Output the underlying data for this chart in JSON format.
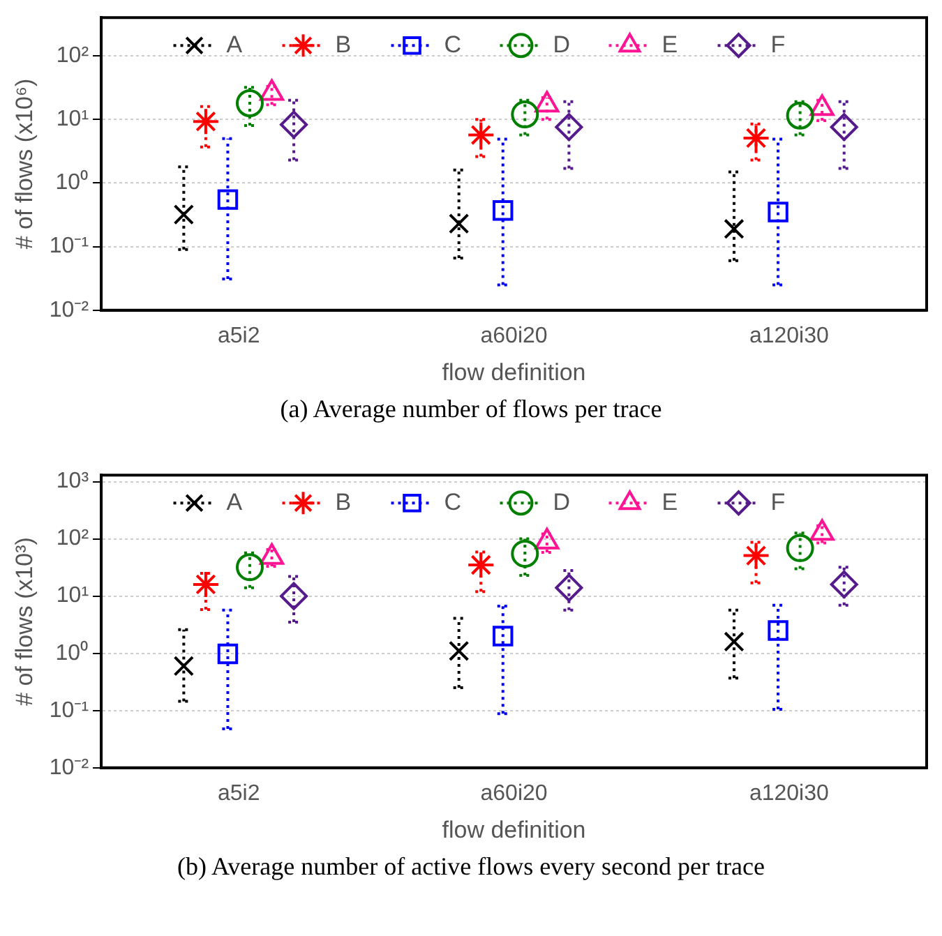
{
  "chart_data": [
    {
      "type": "scatter",
      "title": "(a) Average number of flows per trace",
      "xlabel": "flow definition",
      "ylabel": "# of flows (x10⁶)",
      "categories": [
        "a5i2",
        "a60i20",
        "a120i30"
      ],
      "log": "y",
      "grid": "y",
      "legend": "top",
      "ylim": [
        0.01,
        400
      ],
      "yticks": [
        {
          "value": 0.01,
          "label": "10⁻²"
        },
        {
          "value": 0.1,
          "label": "10⁻¹"
        },
        {
          "value": 1,
          "label": "10⁰"
        },
        {
          "value": 10,
          "label": "10¹"
        },
        {
          "value": 100,
          "label": "10²"
        }
      ],
      "line_style": "dotted",
      "series": [
        {
          "name": "A",
          "color": "#000000",
          "marker": "cross",
          "values": [
            0.32,
            0.23,
            0.19
          ],
          "errors": [
            [
              0.09,
              1.8
            ],
            [
              0.066,
              1.6
            ],
            [
              0.06,
              1.5
            ]
          ]
        },
        {
          "name": "B",
          "color": "#ff0000",
          "values": [
            9.3,
            5.7,
            5.1
          ],
          "errors": [
            [
              3.7,
              16
            ],
            [
              2.6,
              10
            ],
            [
              2.3,
              8.5
            ]
          ]
        },
        {
          "name": "C",
          "color": "#0000ff",
          "marker": "square",
          "values": [
            0.55,
            0.37,
            0.35
          ],
          "errors": [
            [
              0.031,
              5
            ],
            [
              0.025,
              4.9
            ],
            [
              0.025,
              4.9
            ]
          ]
        },
        {
          "name": "D",
          "color": "#007f00",
          "marker": "circle",
          "values": [
            18,
            12,
            11.5
          ],
          "errors": [
            [
              8,
              32
            ],
            [
              5.7,
              20
            ],
            [
              5.7,
              19
            ]
          ]
        },
        {
          "name": "E",
          "color": "#ff1493",
          "marker": "triangle",
          "values": [
            26,
            17,
            15
          ],
          "errors": [
            [
              17,
              33
            ],
            [
              10,
              22
            ],
            [
              9.6,
              20
            ]
          ]
        },
        {
          "name": "F",
          "color": "#551a8b",
          "marker": "diamond",
          "values": [
            8.3,
            7.6,
            7.6
          ],
          "errors": [
            [
              2.3,
              20
            ],
            [
              1.7,
              19
            ],
            [
              1.7,
              19
            ]
          ]
        }
      ]
    },
    {
      "type": "scatter",
      "title": "(b) Average number of active flows every second per trace",
      "xlabel": "flow definition",
      "ylabel": "# of flows (x10³)",
      "categories": [
        "a5i2",
        "a60i20",
        "a120i30"
      ],
      "log": "y",
      "grid": "y",
      "legend": "top",
      "ylim": [
        0.01,
        1300
      ],
      "yticks": [
        {
          "value": 0.01,
          "label": "10⁻²"
        },
        {
          "value": 0.1,
          "label": "10⁻¹"
        },
        {
          "value": 1,
          "label": "10⁰"
        },
        {
          "value": 10,
          "label": "10¹"
        },
        {
          "value": 100,
          "label": "10²"
        },
        {
          "value": 1000,
          "label": "10³"
        }
      ],
      "line_style": "dotted",
      "series": [
        {
          "name": "A",
          "color": "#000000",
          "marker": "cross",
          "values": [
            0.6,
            1.1,
            1.6
          ],
          "errors": [
            [
              0.145,
              2.6
            ],
            [
              0.25,
              4.1
            ],
            [
              0.37,
              5.7
            ]
          ]
        },
        {
          "name": "B",
          "color": "#ff0000",
          "values": [
            16,
            35,
            51
          ],
          "errors": [
            [
              5.8,
              25
            ],
            [
              12,
              59
            ],
            [
              17,
              87
            ]
          ]
        },
        {
          "name": "C",
          "color": "#0000ff",
          "marker": "square",
          "values": [
            0.98,
            2.0,
            2.5
          ],
          "errors": [
            [
              0.048,
              5.7
            ],
            [
              0.088,
              6.7
            ],
            [
              0.105,
              6.9
            ]
          ]
        },
        {
          "name": "D",
          "color": "#007f00",
          "marker": "circle",
          "values": [
            32,
            55,
            69
          ],
          "errors": [
            [
              14,
              57
            ],
            [
              23,
              100
            ],
            [
              30,
              126
            ]
          ]
        },
        {
          "name": "E",
          "color": "#ff1493",
          "marker": "triangle",
          "values": [
            48,
            89,
            126
          ],
          "errors": [
            [
              33,
              65
            ],
            [
              58,
              122
            ],
            [
              85,
              170
            ]
          ]
        },
        {
          "name": "F",
          "color": "#551a8b",
          "marker": "diamond",
          "values": [
            10,
            14,
            16
          ],
          "errors": [
            [
              3.5,
              22
            ],
            [
              5.7,
              28
            ],
            [
              6.9,
              32
            ]
          ]
        }
      ]
    }
  ]
}
